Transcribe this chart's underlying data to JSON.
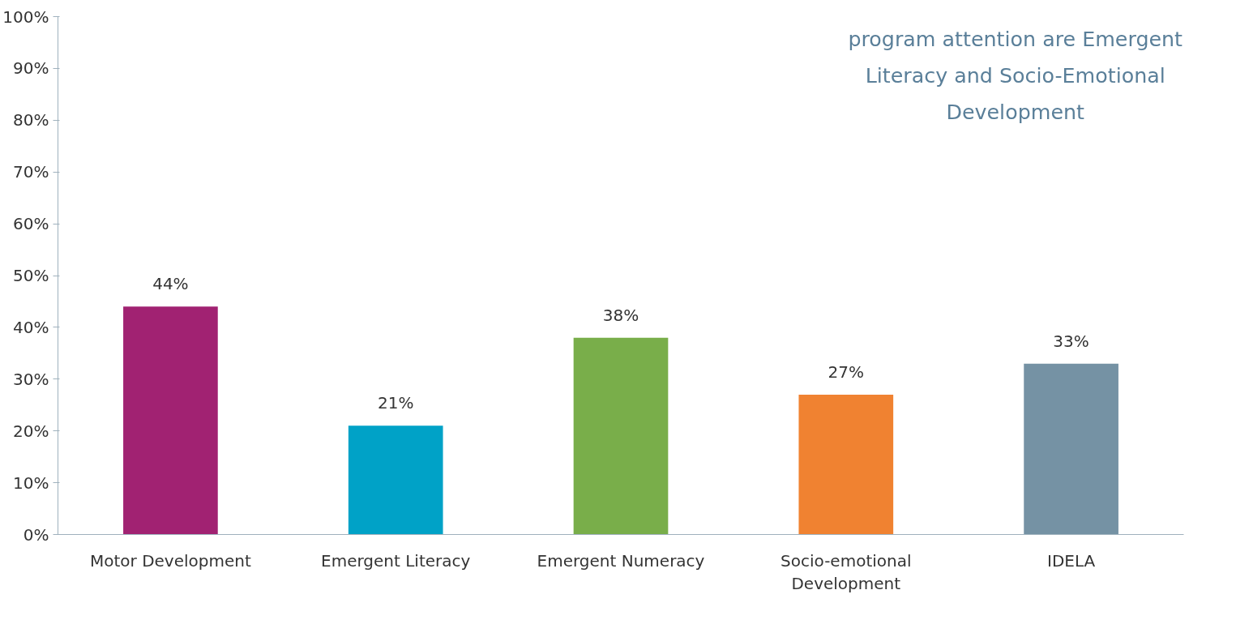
{
  "chart_data": {
    "type": "bar",
    "categories": [
      "Motor Development",
      "Emergent Literacy",
      "Emergent Numeracy",
      "Socio-emotional Development",
      "IDELA"
    ],
    "values": [
      44,
      21,
      38,
      27,
      33
    ],
    "colors": [
      "#a12272",
      "#00a2c7",
      "#79ae4a",
      "#f08231",
      "#7592a4"
    ],
    "ylim": [
      0,
      100
    ],
    "yticks": [
      {
        "value": 0,
        "label": "0%"
      },
      {
        "value": 10,
        "label": "10%"
      },
      {
        "value": 20,
        "label": "20%"
      },
      {
        "value": 30,
        "label": "30%"
      },
      {
        "value": 40,
        "label": "40%"
      },
      {
        "value": 50,
        "label": "50%"
      },
      {
        "value": 60,
        "label": "60%"
      },
      {
        "value": 70,
        "label": "70%"
      },
      {
        "value": 80,
        "label": "80%"
      },
      {
        "value": 90,
        "label": "90%"
      },
      {
        "value": 100,
        "label": "100%"
      }
    ],
    "value_labels": [
      "44%",
      "21%",
      "38%",
      "27%",
      "33%"
    ],
    "annotations": [
      "program attention are Emergent Literacy and Socio-Emotional Development"
    ],
    "grid": false
  }
}
